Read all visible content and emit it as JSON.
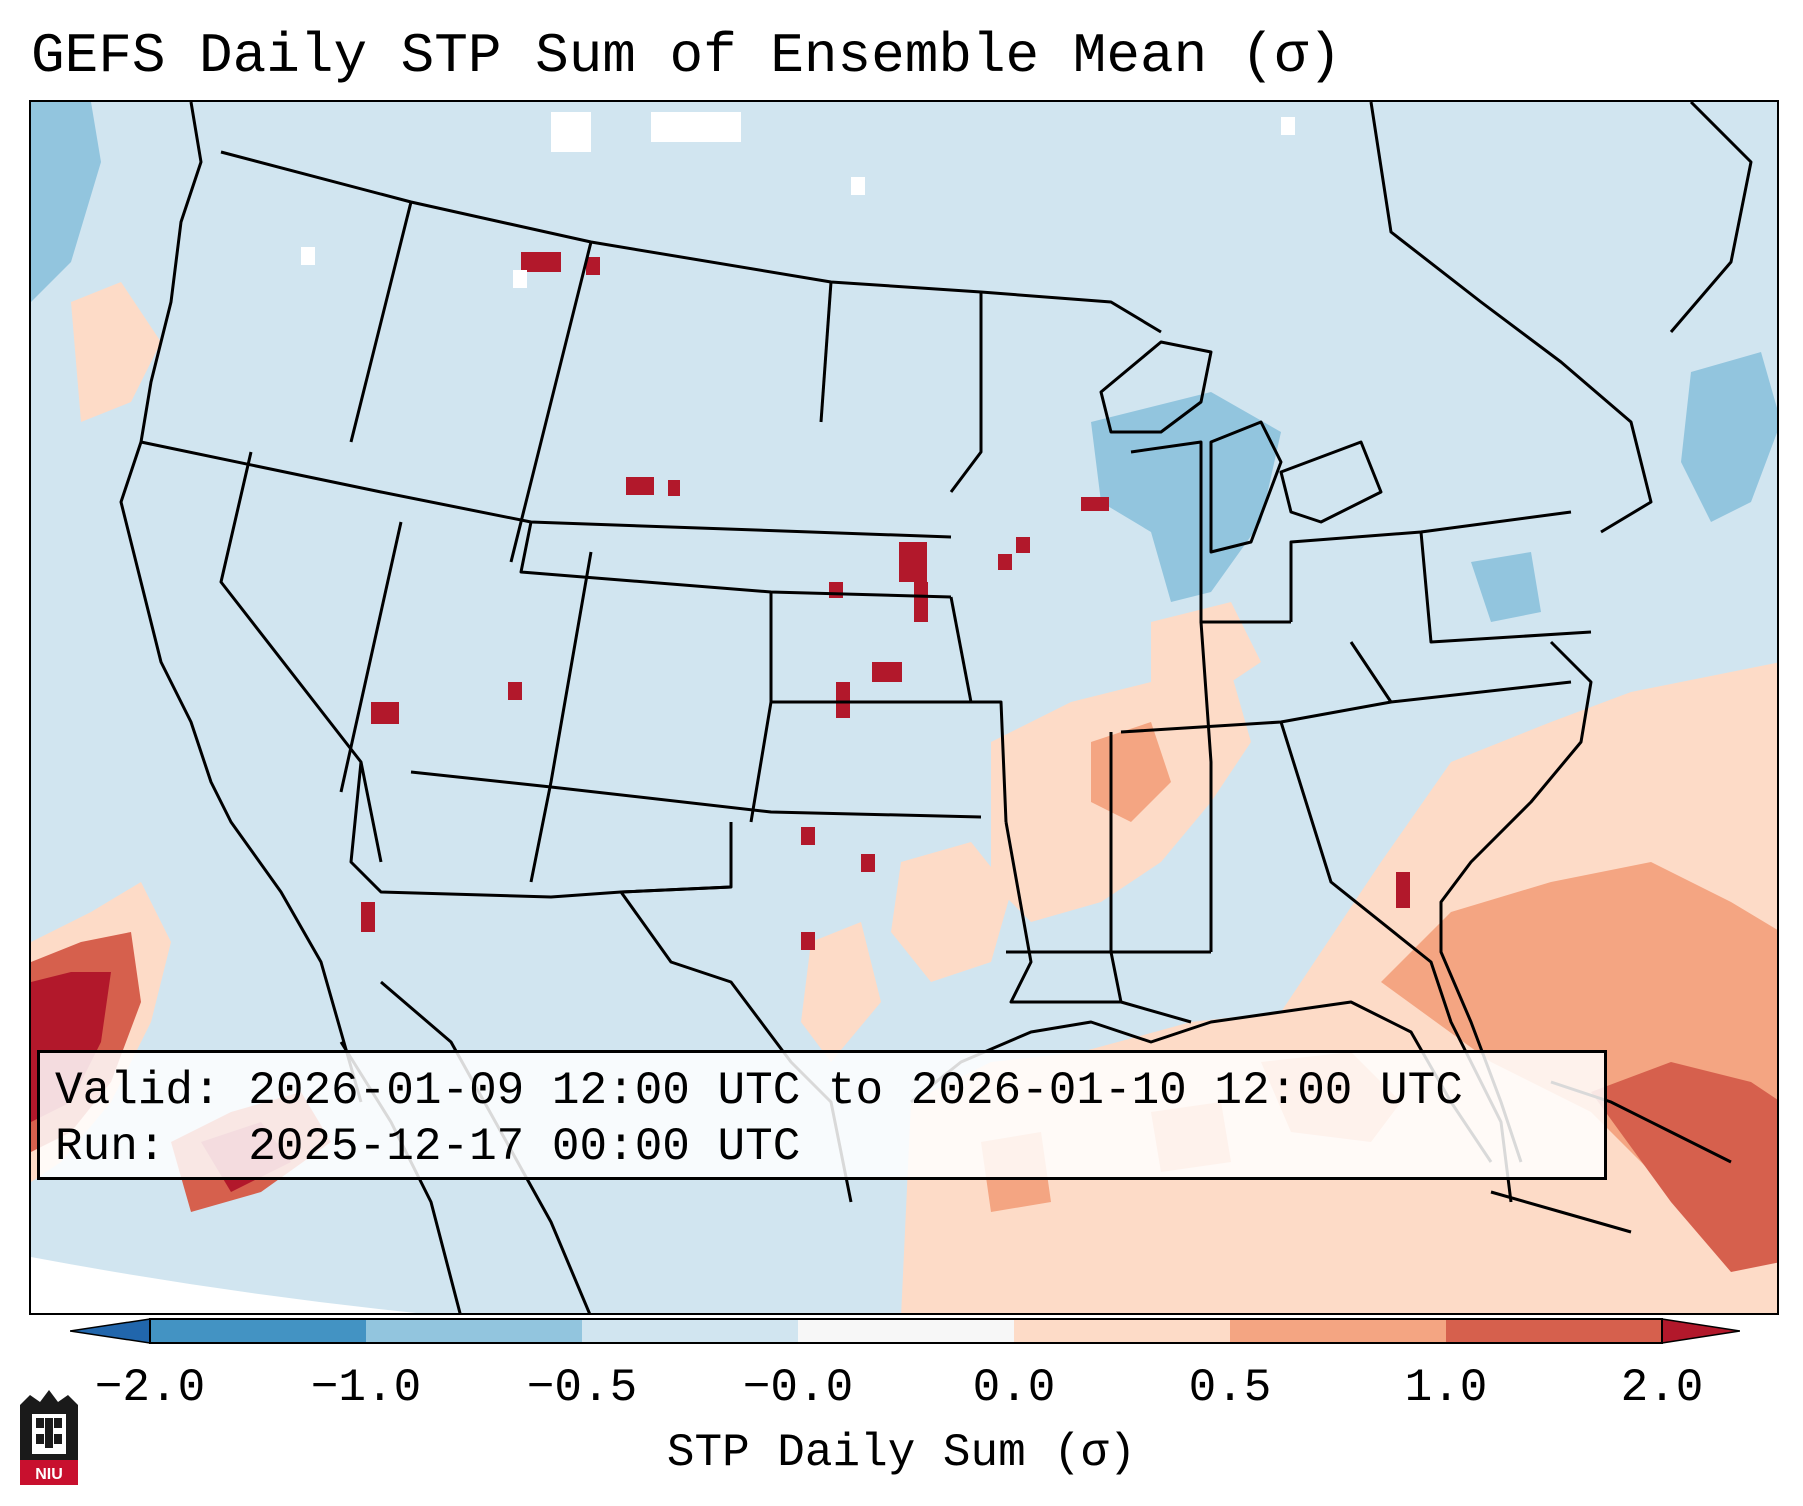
{
  "title_text": "GEFS Daily STP Sum of Ensemble Mean (σ)",
  "info_box": {
    "valid_line": "Valid: 2026-01-09 12:00 UTC to 2026-01-10 12:00 UTC",
    "run_line": "Run:   2025-12-17 00:00 UTC"
  },
  "colorbar": {
    "label": "STP Daily Sum (σ)",
    "tick_labels": [
      "−2.0",
      "−1.0",
      "−0.5",
      "−0.0",
      "0.0",
      "0.5",
      "1.0",
      "2.0"
    ],
    "bin_colors": [
      "#2166ac",
      "#4393c3",
      "#92c5de",
      "#d1e5f0",
      "#f7f7f7",
      "#fddbc7",
      "#f4a582",
      "#d6604d",
      "#b2182b"
    ]
  },
  "palette": {
    "background_field": "#d1e5f0",
    "neutral": "#f7f7f7",
    "low": "#92c5de",
    "mid_high": "#fddbc7",
    "high": "#f4a582",
    "very_high": "#b2182b"
  },
  "logo_text": "NIU"
}
